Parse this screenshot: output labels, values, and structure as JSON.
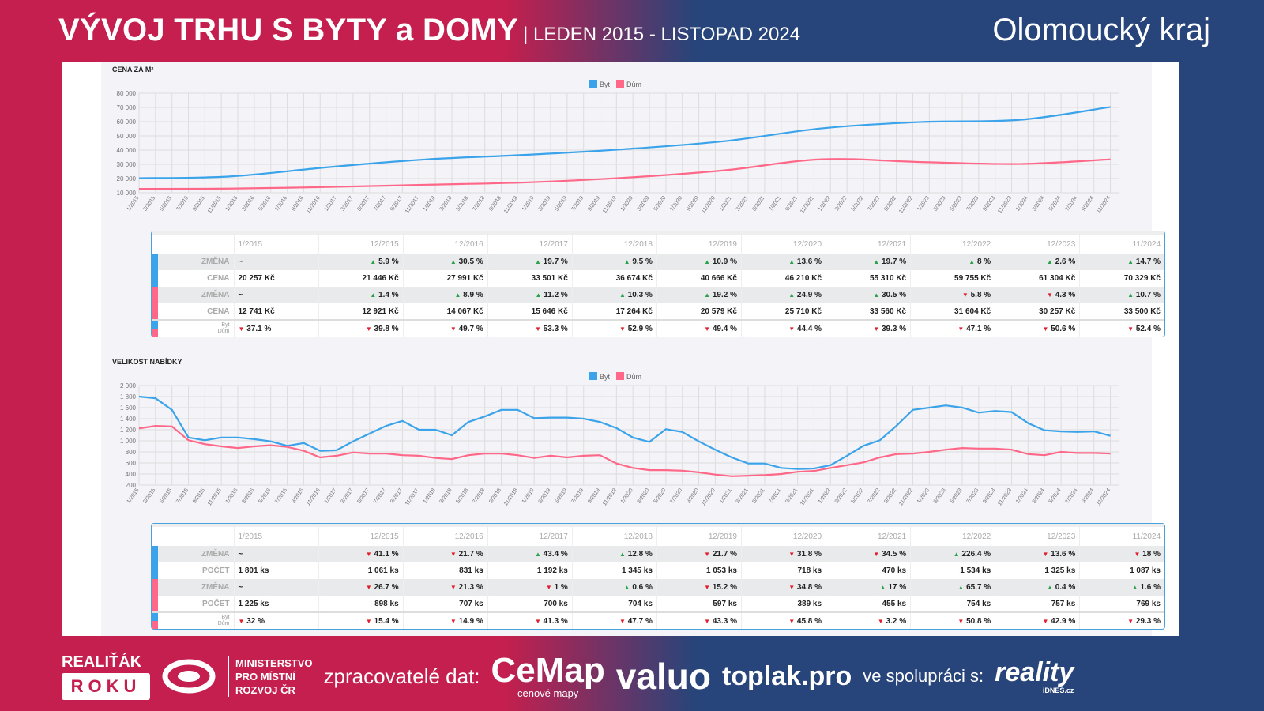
{
  "header": {
    "title": "VÝVOJ TRHU S BYTY a DOMY",
    "period": "| LEDEN 2015 - LISTOPAD 2024",
    "region": "Olomoucký kraj"
  },
  "colors": {
    "byt": "#3aa3ea",
    "dum": "#ff6888",
    "up": "#2aa14a",
    "down": "#e0202e"
  },
  "x_labels": [
    "1/2015",
    "3/2015",
    "5/2015",
    "7/2015",
    "9/2015",
    "11/2015",
    "1/2016",
    "3/2016",
    "5/2016",
    "7/2016",
    "9/2016",
    "11/2016",
    "1/2017",
    "3/2017",
    "5/2017",
    "7/2017",
    "9/2017",
    "11/2017",
    "1/2018",
    "3/2018",
    "5/2018",
    "7/2018",
    "9/2018",
    "11/2018",
    "1/2019",
    "3/2019",
    "5/2019",
    "7/2019",
    "9/2019",
    "11/2019",
    "1/2020",
    "3/2020",
    "5/2020",
    "7/2020",
    "9/2020",
    "11/2020",
    "1/2021",
    "3/2021",
    "5/2021",
    "7/2021",
    "9/2021",
    "11/2021",
    "1/2022",
    "3/2022",
    "5/2022",
    "7/2022",
    "9/2022",
    "11/2022",
    "1/2023",
    "3/2023",
    "5/2023",
    "7/2023",
    "9/2023",
    "11/2023",
    "1/2024",
    "3/2024",
    "5/2024",
    "7/2024",
    "9/2024",
    "11/2024"
  ],
  "chart_data": [
    {
      "type": "line",
      "title": "CENA ZA M²",
      "legend": [
        "Byt",
        "Dům"
      ],
      "legend_position": "top-center",
      "ylim": [
        10000,
        80000
      ],
      "yticks": [
        "80 000",
        "70 000",
        "60 000",
        "50 000",
        "40 000",
        "30 000",
        "20 000",
        "10 000"
      ],
      "ytick_values": [
        80000,
        70000,
        60000,
        50000,
        40000,
        30000,
        20000,
        10000
      ],
      "grid": true,
      "x_month_index": [
        0,
        11,
        23,
        35,
        47,
        59,
        71,
        83,
        95,
        107,
        118
      ],
      "series": [
        {
          "name": "Byt",
          "values": [
            20257,
            21446,
            27991,
            33501,
            36674,
            40666,
            46210,
            55310,
            59755,
            61304,
            70329
          ]
        },
        {
          "name": "Dům",
          "values": [
            12741,
            12921,
            14067,
            15646,
            17264,
            20579,
            25710,
            33560,
            31604,
            30257,
            33500
          ]
        }
      ]
    },
    {
      "type": "line",
      "title": "VELIKOST NABÍDKY",
      "legend": [
        "Byt",
        "Dům"
      ],
      "legend_position": "top-center",
      "ylim": [
        200,
        2000
      ],
      "yticks": [
        "2 000",
        "1 800",
        "1 600",
        "1 400",
        "1 200",
        "1 000",
        "800",
        "600",
        "400",
        "200"
      ],
      "ytick_values": [
        2000,
        1800,
        1600,
        1400,
        1200,
        1000,
        800,
        600,
        400,
        200
      ],
      "grid": true,
      "x_step_months": 2,
      "series": [
        {
          "name": "Byt",
          "values": [
            1800,
            1770,
            1560,
            1060,
            1010,
            1060,
            1060,
            1030,
            990,
            910,
            960,
            820,
            830,
            990,
            1130,
            1270,
            1360,
            1200,
            1200,
            1100,
            1340,
            1440,
            1560,
            1560,
            1410,
            1420,
            1420,
            1400,
            1340,
            1230,
            1060,
            980,
            1210,
            1160,
            990,
            840,
            700,
            590,
            590,
            510,
            490,
            500,
            560,
            730,
            910,
            1010,
            1270,
            1560,
            1600,
            1640,
            1600,
            1510,
            1540,
            1520,
            1320,
            1190,
            1170,
            1160,
            1170,
            1090
          ]
        },
        {
          "name": "Dům",
          "values": [
            1225,
            1270,
            1260,
            1010,
            940,
            900,
            870,
            900,
            920,
            890,
            820,
            700,
            730,
            790,
            770,
            770,
            740,
            730,
            690,
            670,
            740,
            770,
            770,
            740,
            690,
            730,
            700,
            730,
            740,
            590,
            510,
            470,
            470,
            460,
            430,
            390,
            360,
            370,
            380,
            400,
            440,
            455,
            510,
            560,
            610,
            700,
            760,
            770,
            800,
            840,
            870,
            860,
            860,
            840,
            760,
            740,
            800,
            780,
            780,
            770
          ]
        }
      ]
    }
  ],
  "table_price": {
    "cols": [
      "1/2015",
      "12/2015",
      "12/2016",
      "12/2017",
      "12/2018",
      "12/2019",
      "12/2020",
      "12/2021",
      "12/2022",
      "12/2023",
      "11/2024"
    ],
    "rows": [
      {
        "label": "ZMĚNA",
        "series": "byt",
        "alt": true,
        "cells": [
          {
            "v": "~"
          },
          {
            "d": "up",
            "v": "5.9 %"
          },
          {
            "d": "up",
            "v": "30.5 %"
          },
          {
            "d": "up",
            "v": "19.7 %"
          },
          {
            "d": "up",
            "v": "9.5 %"
          },
          {
            "d": "up",
            "v": "10.9 %"
          },
          {
            "d": "up",
            "v": "13.6 %"
          },
          {
            "d": "up",
            "v": "19.7 %"
          },
          {
            "d": "up",
            "v": "8 %"
          },
          {
            "d": "up",
            "v": "2.6 %"
          },
          {
            "d": "up",
            "v": "14.7 %"
          }
        ]
      },
      {
        "label": "CENA",
        "series": "byt",
        "cells": [
          {
            "v": "20 257 Kč"
          },
          {
            "v": "21 446 Kč"
          },
          {
            "v": "27 991 Kč"
          },
          {
            "v": "33 501 Kč"
          },
          {
            "v": "36 674 Kč"
          },
          {
            "v": "40 666 Kč"
          },
          {
            "v": "46 210 Kč"
          },
          {
            "v": "55 310 Kč"
          },
          {
            "v": "59 755 Kč"
          },
          {
            "v": "61 304 Kč"
          },
          {
            "v": "70 329 Kč"
          }
        ]
      },
      {
        "label": "ZMĚNA",
        "series": "dum",
        "alt": true,
        "cells": [
          {
            "v": "~"
          },
          {
            "d": "up",
            "v": "1.4 %"
          },
          {
            "d": "up",
            "v": "8.9 %"
          },
          {
            "d": "up",
            "v": "11.2 %"
          },
          {
            "d": "up",
            "v": "10.3 %"
          },
          {
            "d": "up",
            "v": "19.2 %"
          },
          {
            "d": "up",
            "v": "24.9 %"
          },
          {
            "d": "up",
            "v": "30.5 %"
          },
          {
            "d": "down",
            "v": "5.8 %"
          },
          {
            "d": "down",
            "v": "4.3 %"
          },
          {
            "d": "up",
            "v": "10.7 %"
          }
        ]
      },
      {
        "label": "CENA",
        "series": "dum",
        "cells": [
          {
            "v": "12 741 Kč"
          },
          {
            "v": "12 921 Kč"
          },
          {
            "v": "14 067 Kč"
          },
          {
            "v": "15 646 Kč"
          },
          {
            "v": "17 264 Kč"
          },
          {
            "v": "20 579 Kč"
          },
          {
            "v": "25 710 Kč"
          },
          {
            "v": "33 560 Kč"
          },
          {
            "v": "31 604 Kč"
          },
          {
            "v": "30 257 Kč"
          },
          {
            "v": "33 500 Kč"
          }
        ]
      },
      {
        "label": "Byt",
        "label2": "Dům",
        "series": "ratio",
        "cells": [
          {
            "d": "down",
            "v": "37.1 %"
          },
          {
            "d": "down",
            "v": "39.8 %"
          },
          {
            "d": "down",
            "v": "49.7 %"
          },
          {
            "d": "down",
            "v": "53.3 %"
          },
          {
            "d": "down",
            "v": "52.9 %"
          },
          {
            "d": "down",
            "v": "49.4 %"
          },
          {
            "d": "down",
            "v": "44.4 %"
          },
          {
            "d": "down",
            "v": "39.3 %"
          },
          {
            "d": "down",
            "v": "47.1 %"
          },
          {
            "d": "down",
            "v": "50.6 %"
          },
          {
            "d": "down",
            "v": "52.4 %"
          }
        ]
      }
    ]
  },
  "table_supply": {
    "cols": [
      "1/2015",
      "12/2015",
      "12/2016",
      "12/2017",
      "12/2018",
      "12/2019",
      "12/2020",
      "12/2021",
      "12/2022",
      "12/2023",
      "11/2024"
    ],
    "rows": [
      {
        "label": "ZMĚNA",
        "series": "byt",
        "alt": true,
        "cells": [
          {
            "v": "~"
          },
          {
            "d": "down",
            "v": "41.1 %"
          },
          {
            "d": "down",
            "v": "21.7 %"
          },
          {
            "d": "up",
            "v": "43.4 %"
          },
          {
            "d": "up",
            "v": "12.8 %"
          },
          {
            "d": "down",
            "v": "21.7 %"
          },
          {
            "d": "down",
            "v": "31.8 %"
          },
          {
            "d": "down",
            "v": "34.5 %"
          },
          {
            "d": "up",
            "v": "226.4 %"
          },
          {
            "d": "down",
            "v": "13.6 %"
          },
          {
            "d": "down",
            "v": "18 %"
          }
        ]
      },
      {
        "label": "POČET",
        "series": "byt",
        "cells": [
          {
            "v": "1 801 ks"
          },
          {
            "v": "1 061 ks"
          },
          {
            "v": "831 ks"
          },
          {
            "v": "1 192 ks"
          },
          {
            "v": "1 345 ks"
          },
          {
            "v": "1 053 ks"
          },
          {
            "v": "718 ks"
          },
          {
            "v": "470 ks"
          },
          {
            "v": "1 534 ks"
          },
          {
            "v": "1 325 ks"
          },
          {
            "v": "1 087 ks"
          }
        ]
      },
      {
        "label": "ZMĚNA",
        "series": "dum",
        "alt": true,
        "cells": [
          {
            "v": "~"
          },
          {
            "d": "down",
            "v": "26.7 %"
          },
          {
            "d": "down",
            "v": "21.3 %"
          },
          {
            "d": "down",
            "v": "1 %"
          },
          {
            "d": "up",
            "v": "0.6 %"
          },
          {
            "d": "down",
            "v": "15.2 %"
          },
          {
            "d": "down",
            "v": "34.8 %"
          },
          {
            "d": "up",
            "v": "17 %"
          },
          {
            "d": "up",
            "v": "65.7 %"
          },
          {
            "d": "up",
            "v": "0.4 %"
          },
          {
            "d": "up",
            "v": "1.6 %"
          }
        ]
      },
      {
        "label": "POČET",
        "series": "dum",
        "cells": [
          {
            "v": "1 225 ks"
          },
          {
            "v": "898 ks"
          },
          {
            "v": "707 ks"
          },
          {
            "v": "700 ks"
          },
          {
            "v": "704 ks"
          },
          {
            "v": "597 ks"
          },
          {
            "v": "389 ks"
          },
          {
            "v": "455 ks"
          },
          {
            "v": "754 ks"
          },
          {
            "v": "757 ks"
          },
          {
            "v": "769 ks"
          }
        ]
      },
      {
        "label": "Byt",
        "label2": "Dům",
        "series": "ratio",
        "cells": [
          {
            "d": "down",
            "v": "32 %"
          },
          {
            "d": "down",
            "v": "15.4 %"
          },
          {
            "d": "down",
            "v": "14.9 %"
          },
          {
            "d": "down",
            "v": "41.3 %"
          },
          {
            "d": "down",
            "v": "47.7 %"
          },
          {
            "d": "down",
            "v": "43.3 %"
          },
          {
            "d": "down",
            "v": "45.8 %"
          },
          {
            "d": "down",
            "v": "3.2 %"
          },
          {
            "d": "down",
            "v": "50.8 %"
          },
          {
            "d": "down",
            "v": "42.9 %"
          },
          {
            "d": "down",
            "v": "29.3 %"
          }
        ]
      }
    ]
  },
  "footer": {
    "realitak": "REALIŤÁK",
    "roku": "ROKU",
    "mmr": [
      "MINISTERSTVO",
      "PRO MÍSTNÍ",
      "ROZVOJ ČR"
    ],
    "processors_label": "zpracovatelé dat:",
    "cemap": "CeMap",
    "cemap_sub": "cenové mapy",
    "valuo": "valuo",
    "toplak": "toplak.pro",
    "cooperation_label": "ve spolupráci s:",
    "reality": "reality",
    "idnes": "iDNES.cz"
  }
}
